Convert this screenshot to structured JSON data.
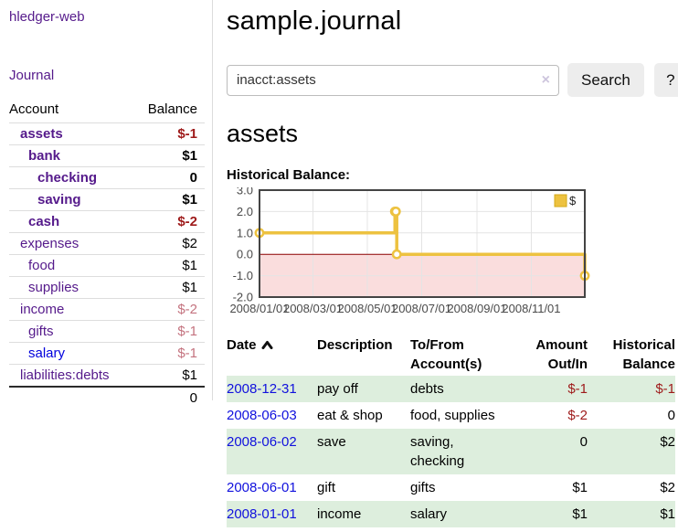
{
  "app": {
    "brand": "hledger-web"
  },
  "sidebar": {
    "nav_journal": "Journal",
    "accounts_table": {
      "header_account": "Account",
      "header_balance": "Balance",
      "rows": [
        {
          "name": "assets",
          "indent": 1,
          "balance": "$-1",
          "bold": true,
          "negative": "strong"
        },
        {
          "name": "bank",
          "indent": 2,
          "balance": "$1",
          "bold": true,
          "negative": "none"
        },
        {
          "name": "checking",
          "indent": 3,
          "balance": "0",
          "bold": true,
          "negative": "none"
        },
        {
          "name": "saving",
          "indent": 3,
          "balance": "$1",
          "bold": true,
          "negative": "none"
        },
        {
          "name": "cash",
          "indent": 2,
          "balance": "$-2",
          "bold": true,
          "negative": "strong"
        },
        {
          "name": "expenses",
          "indent": 1,
          "balance": "$2",
          "bold": false,
          "negative": "none"
        },
        {
          "name": "food",
          "indent": 2,
          "balance": "$1",
          "bold": false,
          "negative": "none"
        },
        {
          "name": "supplies",
          "indent": 2,
          "balance": "$1",
          "bold": false,
          "negative": "none"
        },
        {
          "name": "income",
          "indent": 1,
          "balance": "$-2",
          "bold": false,
          "negative": "soft"
        },
        {
          "name": "gifts",
          "indent": 2,
          "balance": "$-1",
          "bold": false,
          "negative": "soft"
        },
        {
          "name": "salary",
          "indent": 2,
          "balance": "$-1",
          "bold": false,
          "negative": "soft",
          "link_style": "unvisited"
        },
        {
          "name": "liabilities:debts",
          "indent": 1,
          "balance": "$1",
          "bold": false,
          "negative": "none"
        }
      ],
      "total": "0"
    }
  },
  "header": {
    "title": "sample.journal"
  },
  "search": {
    "value": "inacct:assets",
    "clear_icon": "×",
    "button_label": "Search",
    "help_label": "?"
  },
  "account_view": {
    "title": "assets",
    "chart_title": "Historical Balance:"
  },
  "chart_data": {
    "type": "line",
    "title": "Historical Balance:",
    "step": true,
    "xlim": [
      "2008-01-01",
      "2008-12-31"
    ],
    "ylim": [
      -2.0,
      3.0
    ],
    "y_ticks": [
      3.0,
      2.0,
      1.0,
      0.0,
      -1.0,
      -2.0
    ],
    "x_ticks": [
      "2008-01-01",
      "2008-03-01",
      "2008-05-01",
      "2008-07-01",
      "2008-09-01",
      "2008-11-01"
    ],
    "x_tick_labels": [
      "2008/01/01",
      "2008/03/01",
      "2008/05/01",
      "2008/07/01",
      "2008/09/01",
      "2008/11/01"
    ],
    "legend": {
      "label": "$",
      "position": "top-right"
    },
    "series": [
      {
        "name": "$",
        "color": "#edc240",
        "points": [
          {
            "x": "2008-01-01",
            "y": 1
          },
          {
            "x": "2008-06-01",
            "y": 2
          },
          {
            "x": "2008-06-02",
            "y": 2
          },
          {
            "x": "2008-06-03",
            "y": 0
          },
          {
            "x": "2008-12-31",
            "y": -1
          }
        ]
      }
    ],
    "grid": true,
    "zero_line_color": "#8b0000",
    "negative_region_color": "#fadddd",
    "border_color": "#444444",
    "gridline_color": "#e4e4e4",
    "tick_text_color": "#4a4a4a"
  },
  "register_table": {
    "headers": {
      "date": "Date",
      "description": "Description",
      "tofrom_line1": "To/From",
      "tofrom_line2": "Account(s)",
      "amount_line1": "Amount",
      "amount_line2": "Out/In",
      "balance_line1": "Historical",
      "balance_line2": "Balance"
    },
    "rows": [
      {
        "date": "2008-12-31",
        "description": "pay off",
        "accounts": "debts",
        "amount": "$-1",
        "amount_negative": true,
        "balance": "$-1",
        "balance_negative": true,
        "shaded": true
      },
      {
        "date": "2008-06-03",
        "description": "eat & shop",
        "accounts": "food, supplies",
        "amount": "$-2",
        "amount_negative": true,
        "balance": "0",
        "balance_negative": false,
        "shaded": false
      },
      {
        "date": "2008-06-02",
        "description": "save",
        "accounts": "saving, checking",
        "amount": "0",
        "amount_negative": false,
        "balance": "$2",
        "balance_negative": false,
        "shaded": true
      },
      {
        "date": "2008-06-01",
        "description": "gift",
        "accounts": "gifts",
        "amount": "$1",
        "amount_negative": false,
        "balance": "$2",
        "balance_negative": false,
        "shaded": false
      },
      {
        "date": "2008-01-01",
        "description": "income",
        "accounts": "salary",
        "amount": "$1",
        "amount_negative": false,
        "balance": "$1",
        "balance_negative": false,
        "shaded": true
      }
    ]
  }
}
